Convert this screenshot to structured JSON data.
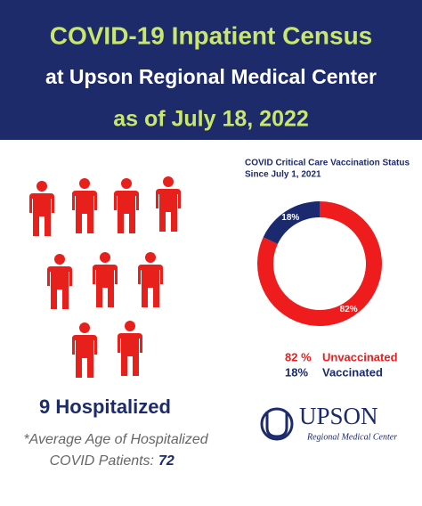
{
  "header": {
    "line1": "COVID-19 Inpatient Census",
    "line2": "at Upson Regional Medical Center",
    "line3": "as of July 18, 2022"
  },
  "hospitalized": "9 Hospitalized",
  "average_age": {
    "line1": "*Average Age of Hospitalized",
    "line2": "COVID Patients:",
    "value": "72"
  },
  "chart_data": {
    "type": "donut",
    "title": "COVID Critical Care Vaccination Status",
    "subtitle": "Since July 1, 2021",
    "categories": [
      "Unvaccinated",
      "Vaccinated"
    ],
    "values": [
      82,
      18
    ],
    "value_labels": [
      "82%",
      "18%"
    ],
    "legend_value_labels": [
      "82 %",
      "18%"
    ],
    "colors": [
      "#ee1c1c",
      "#1b2a6e"
    ]
  },
  "logo": {
    "name": "UPSON",
    "tagline": "Regional Medical Center"
  }
}
